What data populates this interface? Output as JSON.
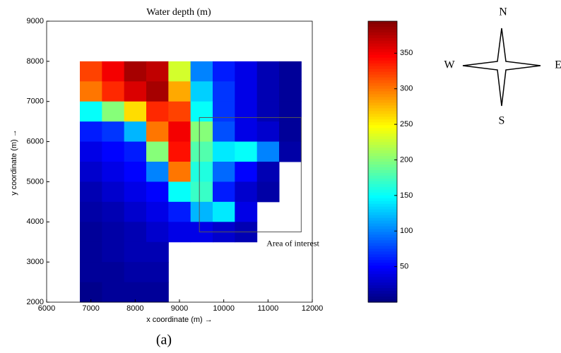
{
  "chart_data": {
    "type": "heatmap",
    "title": "Water depth (m)",
    "x_label": "x coordinate (m) →",
    "y_label": "y coordinate (m) →",
    "x": [
      7000,
      7500,
      8000,
      8500,
      9000,
      9500,
      10000,
      10500,
      11000,
      11500
    ],
    "y": [
      7750,
      7250,
      6750,
      6250,
      5750,
      5250,
      4750,
      4250,
      3750,
      3250,
      2750,
      2250
    ],
    "z": [
      [
        320,
        350,
        380,
        370,
        230,
        100,
        60,
        40,
        20,
        10
      ],
      [
        300,
        330,
        360,
        380,
        280,
        130,
        70,
        40,
        20,
        10
      ],
      [
        150,
        200,
        260,
        330,
        320,
        150,
        70,
        40,
        20,
        10
      ],
      [
        60,
        70,
        120,
        300,
        350,
        200,
        80,
        40,
        30,
        10
      ],
      [
        40,
        50,
        60,
        200,
        340,
        180,
        140,
        150,
        100,
        15
      ],
      [
        30,
        40,
        50,
        100,
        300,
        160,
        90,
        50,
        20,
        null
      ],
      [
        20,
        30,
        40,
        50,
        150,
        170,
        60,
        30,
        15,
        null
      ],
      [
        15,
        20,
        30,
        40,
        60,
        120,
        140,
        40,
        null,
        null
      ],
      [
        10,
        15,
        20,
        30,
        40,
        40,
        30,
        20,
        null,
        null
      ],
      [
        10,
        15,
        20,
        20,
        null,
        null,
        null,
        null,
        null,
        null
      ],
      [
        10,
        10,
        15,
        15,
        null,
        null,
        null,
        null,
        null,
        null
      ],
      [
        5,
        10,
        10,
        10,
        null,
        null,
        null,
        null,
        null,
        null
      ]
    ],
    "xlim": [
      6000,
      12000
    ],
    "ylim": [
      2000,
      9000
    ],
    "xticks": [
      6000,
      7000,
      8000,
      9000,
      10000,
      11000,
      12000
    ],
    "yticks": [
      2000,
      3000,
      4000,
      5000,
      6000,
      7000,
      8000,
      9000
    ],
    "colormap": "jet",
    "clim": [
      0,
      395
    ],
    "cticks": [
      50,
      100,
      150,
      200,
      250,
      300,
      350
    ],
    "annotation": {
      "text": "Area of interest",
      "box_x": [
        9450,
        11750
      ],
      "box_y": [
        3750,
        6600
      ]
    }
  },
  "compass": {
    "n": "N",
    "w": "W",
    "e": "E",
    "s": "S"
  },
  "caption": "(a)"
}
